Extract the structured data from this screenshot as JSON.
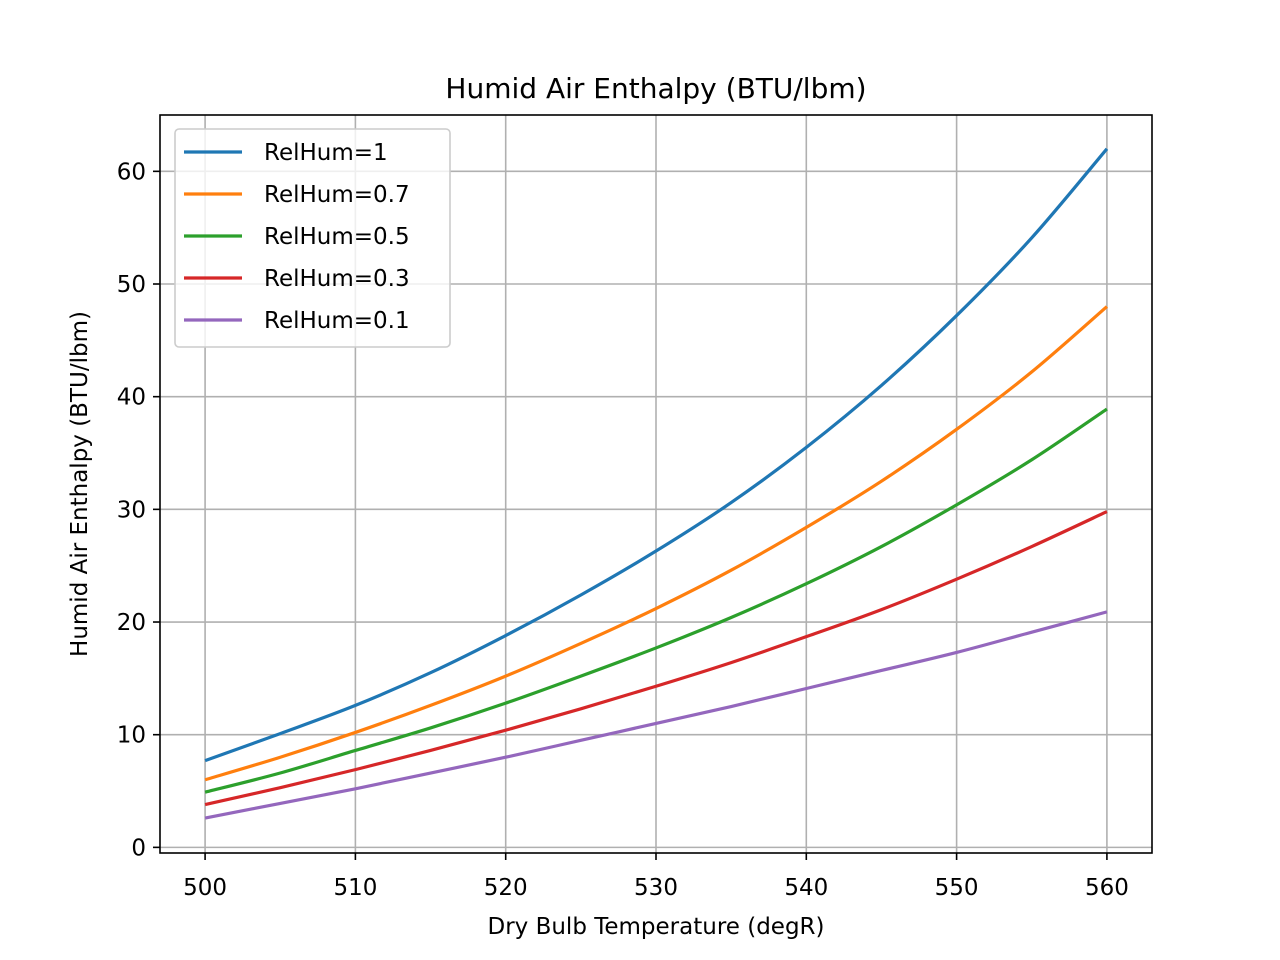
{
  "chart_data": {
    "type": "line",
    "title": "Humid Air Enthalpy (BTU/lbm)",
    "xlabel": "Dry Bulb Temperature (degR)",
    "ylabel": "Humid Air Enthalpy (BTU/lbm)",
    "xlim": [
      497,
      563
    ],
    "ylim": [
      -0.5,
      65
    ],
    "xticks": [
      500,
      510,
      520,
      530,
      540,
      550,
      560
    ],
    "yticks": [
      0,
      10,
      20,
      30,
      40,
      50,
      60
    ],
    "grid": true,
    "legend_position": "upper-left",
    "x": [
      500,
      505,
      510,
      515,
      520,
      525,
      530,
      535,
      540,
      545,
      550,
      555,
      560
    ],
    "series": [
      {
        "name": "RelHum=1",
        "color": "#1f77b4",
        "values": [
          7.7,
          10.1,
          12.6,
          15.5,
          18.8,
          22.4,
          26.3,
          30.6,
          35.5,
          41.0,
          47.2,
          54.1,
          62.0
        ]
      },
      {
        "name": "RelHum=0.7",
        "color": "#ff7f0e",
        "values": [
          6.0,
          8.0,
          10.2,
          12.6,
          15.2,
          18.1,
          21.2,
          24.6,
          28.4,
          32.5,
          37.1,
          42.2,
          48.0
        ]
      },
      {
        "name": "RelHum=0.5",
        "color": "#2ca02c",
        "values": [
          4.9,
          6.6,
          8.6,
          10.6,
          12.8,
          15.2,
          17.7,
          20.4,
          23.4,
          26.7,
          30.4,
          34.4,
          38.9
        ]
      },
      {
        "name": "RelHum=0.3",
        "color": "#d62728",
        "values": [
          3.8,
          5.3,
          6.9,
          8.6,
          10.4,
          12.3,
          14.3,
          16.4,
          18.7,
          21.1,
          23.8,
          26.7,
          29.8
        ]
      },
      {
        "name": "RelHum=0.1",
        "color": "#9467bd",
        "values": [
          2.6,
          3.9,
          5.2,
          6.6,
          8.0,
          9.5,
          11.0,
          12.5,
          14.1,
          15.7,
          17.3,
          19.1,
          20.9
        ]
      }
    ]
  }
}
